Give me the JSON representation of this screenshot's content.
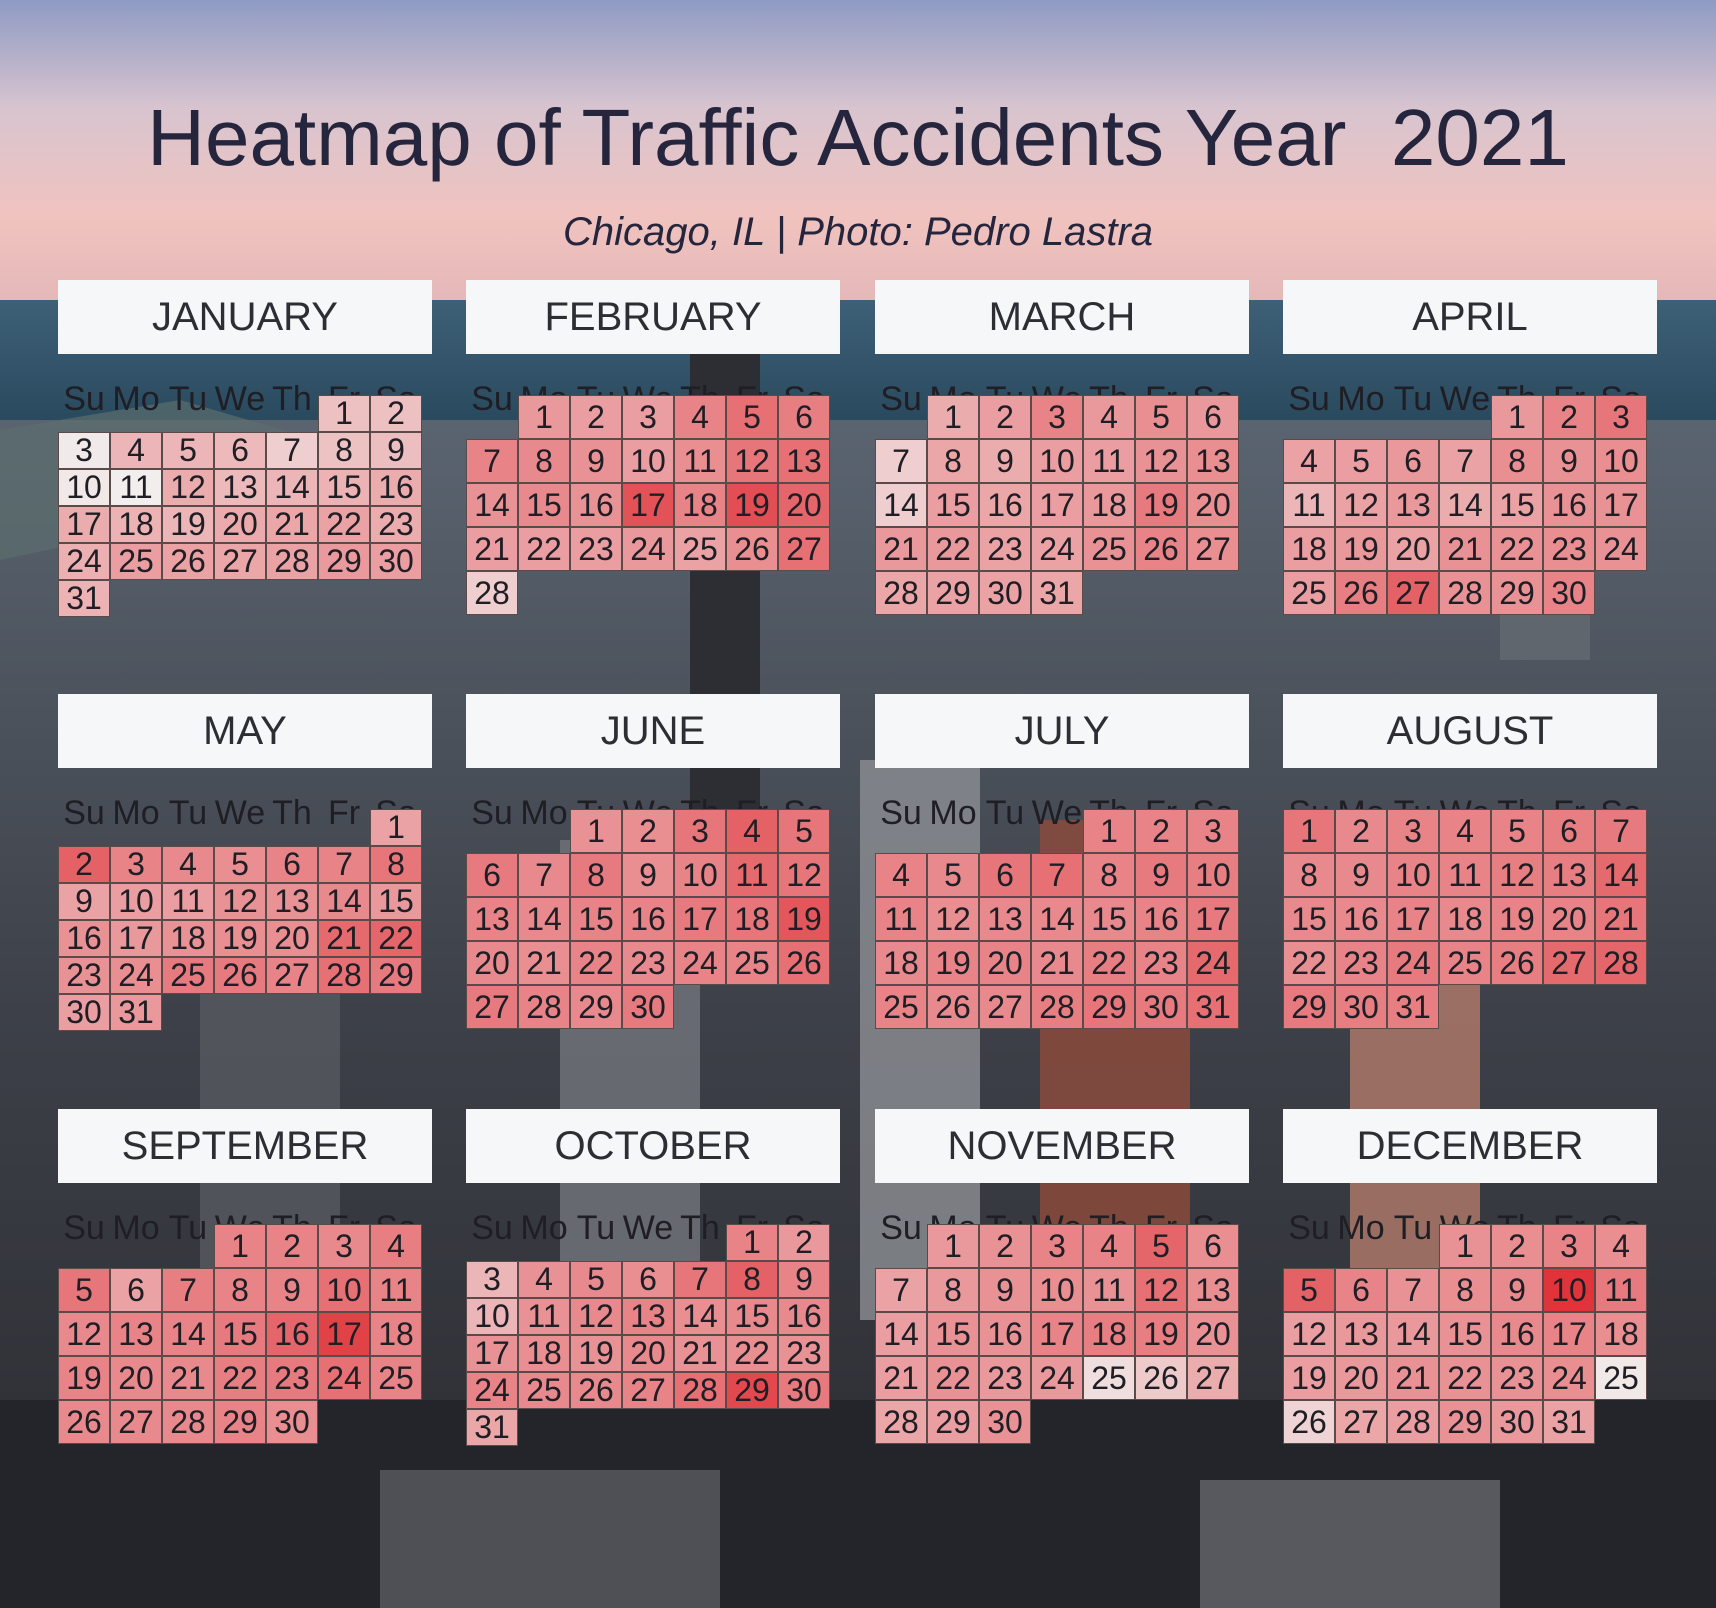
{
  "title": "Heatmap of Traffic Accidents Year  2021",
  "subtitle": "Chicago, IL | Photo: Pedro Lastra",
  "colors": {
    "low": "#f2f2f2",
    "high": "#df2a30",
    "header_bg": "#f6f7f8",
    "text_dark": "#25263d"
  },
  "chart_data": {
    "type": "heatmap",
    "year": 2021,
    "layout": "calendar",
    "weekday_labels": [
      "Su",
      "Mo",
      "Tu",
      "We",
      "Th",
      "Fr",
      "Sa"
    ],
    "color_scale": "relative accident count per day, 0 = lowest (near white) to 1 = highest (red)",
    "months": [
      {
        "name": "JANUARY",
        "first_weekday": 5,
        "days": 31,
        "values": [
          0.25,
          0.25,
          0.04,
          0.3,
          0.3,
          0.28,
          0.18,
          0.24,
          0.26,
          0.05,
          0.02,
          0.35,
          0.28,
          0.3,
          0.32,
          0.35,
          0.35,
          0.32,
          0.3,
          0.36,
          0.38,
          0.4,
          0.35,
          0.33,
          0.42,
          0.4,
          0.38,
          0.4,
          0.44,
          0.42,
          0.32
        ]
      },
      {
        "name": "FEBRUARY",
        "first_weekday": 1,
        "days": 28,
        "values": [
          0.45,
          0.42,
          0.42,
          0.55,
          0.65,
          0.58,
          0.55,
          0.52,
          0.48,
          0.42,
          0.5,
          0.62,
          0.65,
          0.48,
          0.52,
          0.48,
          0.8,
          0.55,
          0.82,
          0.7,
          0.42,
          0.42,
          0.42,
          0.45,
          0.4,
          0.5,
          0.65,
          0.18
        ]
      },
      {
        "name": "MARCH",
        "first_weekday": 1,
        "days": 31,
        "values": [
          0.35,
          0.42,
          0.55,
          0.45,
          0.5,
          0.45,
          0.18,
          0.38,
          0.35,
          0.42,
          0.42,
          0.48,
          0.5,
          0.18,
          0.42,
          0.38,
          0.42,
          0.45,
          0.6,
          0.5,
          0.45,
          0.45,
          0.4,
          0.4,
          0.48,
          0.55,
          0.5,
          0.38,
          0.4,
          0.4,
          0.38
        ]
      },
      {
        "name": "APRIL",
        "first_weekday": 4,
        "days": 30,
        "values": [
          0.45,
          0.55,
          0.62,
          0.4,
          0.42,
          0.45,
          0.4,
          0.5,
          0.48,
          0.5,
          0.3,
          0.4,
          0.45,
          0.35,
          0.4,
          0.48,
          0.48,
          0.42,
          0.45,
          0.4,
          0.48,
          0.48,
          0.5,
          0.48,
          0.42,
          0.58,
          0.72,
          0.48,
          0.48,
          0.55
        ]
      },
      {
        "name": "MAY",
        "first_weekday": 6,
        "days": 31,
        "values": [
          0.4,
          0.72,
          0.55,
          0.52,
          0.5,
          0.55,
          0.55,
          0.62,
          0.4,
          0.42,
          0.42,
          0.48,
          0.48,
          0.52,
          0.45,
          0.48,
          0.45,
          0.48,
          0.5,
          0.5,
          0.68,
          0.7,
          0.48,
          0.5,
          0.6,
          0.6,
          0.55,
          0.65,
          0.6,
          0.42,
          0.45
        ]
      },
      {
        "name": "JUNE",
        "first_weekday": 2,
        "days": 30,
        "values": [
          0.48,
          0.5,
          0.62,
          0.72,
          0.62,
          0.6,
          0.52,
          0.6,
          0.5,
          0.55,
          0.68,
          0.62,
          0.55,
          0.52,
          0.55,
          0.55,
          0.6,
          0.62,
          0.78,
          0.52,
          0.5,
          0.55,
          0.52,
          0.55,
          0.55,
          0.65,
          0.6,
          0.55,
          0.52,
          0.6
        ]
      },
      {
        "name": "JULY",
        "first_weekday": 4,
        "days": 31,
        "values": [
          0.55,
          0.55,
          0.55,
          0.55,
          0.52,
          0.62,
          0.65,
          0.55,
          0.6,
          0.58,
          0.55,
          0.5,
          0.52,
          0.52,
          0.52,
          0.55,
          0.6,
          0.52,
          0.55,
          0.55,
          0.52,
          0.58,
          0.55,
          0.68,
          0.55,
          0.52,
          0.52,
          0.58,
          0.62,
          0.6,
          0.65
        ]
      },
      {
        "name": "AUGUST",
        "first_weekday": 0,
        "days": 31,
        "values": [
          0.62,
          0.52,
          0.55,
          0.55,
          0.55,
          0.58,
          0.6,
          0.52,
          0.52,
          0.55,
          0.55,
          0.58,
          0.58,
          0.68,
          0.52,
          0.52,
          0.55,
          0.52,
          0.55,
          0.55,
          0.62,
          0.5,
          0.55,
          0.6,
          0.55,
          0.58,
          0.68,
          0.7,
          0.6,
          0.58,
          0.58
        ]
      },
      {
        "name": "SEPTEMBER",
        "first_weekday": 3,
        "days": 30,
        "values": [
          0.55,
          0.55,
          0.52,
          0.58,
          0.62,
          0.4,
          0.58,
          0.55,
          0.55,
          0.65,
          0.55,
          0.52,
          0.55,
          0.55,
          0.6,
          0.7,
          0.88,
          0.55,
          0.55,
          0.52,
          0.52,
          0.58,
          0.6,
          0.65,
          0.55,
          0.52,
          0.52,
          0.52,
          0.55,
          0.5
        ]
      },
      {
        "name": "OCTOBER",
        "first_weekday": 5,
        "days": 31,
        "values": [
          0.55,
          0.45,
          0.3,
          0.48,
          0.52,
          0.5,
          0.62,
          0.72,
          0.55,
          0.3,
          0.48,
          0.52,
          0.55,
          0.5,
          0.52,
          0.52,
          0.48,
          0.5,
          0.48,
          0.52,
          0.48,
          0.5,
          0.48,
          0.55,
          0.52,
          0.52,
          0.55,
          0.65,
          0.85,
          0.6,
          0.38
        ]
      },
      {
        "name": "NOVEMBER",
        "first_weekday": 1,
        "days": 30,
        "values": [
          0.45,
          0.48,
          0.55,
          0.55,
          0.7,
          0.5,
          0.4,
          0.45,
          0.48,
          0.5,
          0.48,
          0.65,
          0.5,
          0.42,
          0.48,
          0.48,
          0.55,
          0.58,
          0.58,
          0.48,
          0.42,
          0.48,
          0.45,
          0.45,
          0.1,
          0.2,
          0.35,
          0.38,
          0.42,
          0.48
        ]
      },
      {
        "name": "DECEMBER",
        "first_weekday": 3,
        "days": 31,
        "values": [
          0.48,
          0.5,
          0.55,
          0.5,
          0.72,
          0.55,
          0.48,
          0.5,
          0.52,
          0.95,
          0.6,
          0.42,
          0.45,
          0.45,
          0.48,
          0.52,
          0.55,
          0.5,
          0.42,
          0.45,
          0.48,
          0.48,
          0.48,
          0.5,
          0.05,
          0.15,
          0.38,
          0.42,
          0.48,
          0.45,
          0.4
        ]
      }
    ]
  }
}
